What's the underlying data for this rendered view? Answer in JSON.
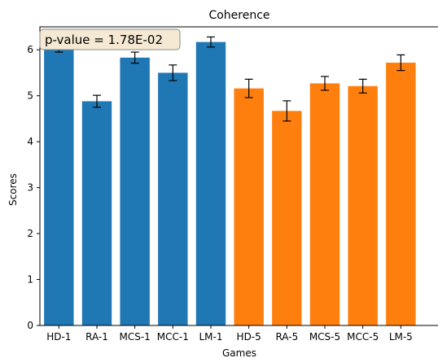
{
  "chart_data": {
    "type": "bar",
    "title": "Coherence",
    "xlabel": "Games",
    "ylabel": "Scores",
    "ylim": [
      0,
      6.5
    ],
    "yticks": [
      0,
      1,
      2,
      3,
      4,
      5,
      6
    ],
    "grid": false,
    "legend": "none",
    "annotation": "p-value = 1.78E-02",
    "categories": [
      "HD-1",
      "RA-1",
      "MCS-1",
      "MCC-1",
      "LM-1",
      "HD-5",
      "RA-5",
      "MCS-5",
      "MCC-5",
      "LM-5"
    ],
    "values": [
      6.07,
      4.88,
      5.83,
      5.5,
      6.17,
      5.16,
      4.67,
      5.27,
      5.21,
      5.72
    ],
    "errors": [
      0.12,
      0.13,
      0.12,
      0.17,
      0.11,
      0.2,
      0.22,
      0.15,
      0.15,
      0.17
    ],
    "bar_colors": [
      "#1f77b4",
      "#1f77b4",
      "#1f77b4",
      "#1f77b4",
      "#1f77b4",
      "#ff7f0e",
      "#ff7f0e",
      "#ff7f0e",
      "#ff7f0e",
      "#ff7f0e"
    ],
    "annotation_box_fill": "#f5e9d3",
    "annotation_box_edge": "#8a8a8a"
  }
}
